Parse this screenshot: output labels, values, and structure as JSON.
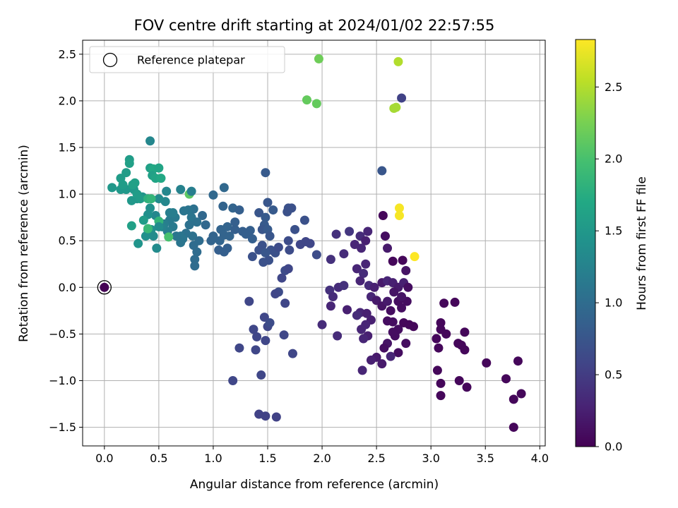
{
  "chart_data": {
    "type": "scatter",
    "title": "FOV centre drift starting at 2024/01/02 22:57:55",
    "xlabel": "Angular distance from reference (arcmin)",
    "ylabel": "Rotation from reference (arcmin)",
    "xlim": [
      -0.2,
      4.05
    ],
    "ylim": [
      -1.7,
      2.65
    ],
    "xticks": [
      0.0,
      0.5,
      1.0,
      1.5,
      2.0,
      2.5,
      3.0,
      3.5,
      4.0
    ],
    "xtick_labels": [
      "0.0",
      "0.5",
      "1.0",
      "1.5",
      "2.0",
      "2.5",
      "3.0",
      "3.5",
      "4.0"
    ],
    "yticks": [
      -1.5,
      -1.0,
      -0.5,
      0.0,
      0.5,
      1.0,
      1.5,
      2.0,
      2.5
    ],
    "ytick_labels": [
      "−1.5",
      "−1.0",
      "−0.5",
      "0.0",
      "0.5",
      "1.0",
      "1.5",
      "2.0",
      "2.5"
    ],
    "grid": true,
    "legend": {
      "placement": "top-left",
      "entries": [
        "Reference platepar"
      ]
    },
    "reference_point": {
      "x": 0.0,
      "y": 0.0,
      "label": "Reference platepar"
    },
    "colorbar": {
      "label": "Hours from first FF file",
      "colormap": "viridis",
      "min": 0.0,
      "max": 2.83,
      "ticks": [
        0.0,
        0.5,
        1.0,
        1.5,
        2.0,
        2.5
      ],
      "tick_labels": [
        "0.0",
        "0.5",
        "1.0",
        "1.5",
        "2.0",
        "2.5"
      ]
    },
    "points": [
      {
        "x": 0.0,
        "y": 0.0,
        "c": 0.0
      },
      {
        "x": 1.97,
        "y": 2.45,
        "c": 2.2
      },
      {
        "x": 2.7,
        "y": 2.42,
        "c": 2.5
      },
      {
        "x": 1.86,
        "y": 2.01,
        "c": 2.15
      },
      {
        "x": 1.95,
        "y": 1.97,
        "c": 2.15
      },
      {
        "x": 2.73,
        "y": 2.03,
        "c": 0.55
      },
      {
        "x": 2.66,
        "y": 1.92,
        "c": 2.45
      },
      {
        "x": 2.68,
        "y": 1.93,
        "c": 2.45
      },
      {
        "x": 2.71,
        "y": 0.85,
        "c": 2.8
      },
      {
        "x": 2.71,
        "y": 0.77,
        "c": 2.8
      },
      {
        "x": 2.85,
        "y": 0.33,
        "c": 2.83
      },
      {
        "x": 2.55,
        "y": 1.25,
        "c": 0.75
      },
      {
        "x": 2.56,
        "y": 0.77,
        "c": 0.05
      },
      {
        "x": 2.58,
        "y": 0.55,
        "c": 0.1
      },
      {
        "x": 2.6,
        "y": 0.42,
        "c": 0.2
      },
      {
        "x": 2.65,
        "y": 0.28,
        "c": 0.05
      },
      {
        "x": 2.74,
        "y": 0.29,
        "c": 0.05
      },
      {
        "x": 2.42,
        "y": 0.6,
        "c": 0.3
      },
      {
        "x": 2.35,
        "y": 0.55,
        "c": 0.35
      },
      {
        "x": 2.3,
        "y": 0.46,
        "c": 0.3
      },
      {
        "x": 2.25,
        "y": 0.6,
        "c": 0.45
      },
      {
        "x": 2.4,
        "y": 0.5,
        "c": 0.25
      },
      {
        "x": 2.36,
        "y": 0.42,
        "c": 0.3
      },
      {
        "x": 2.2,
        "y": 0.36,
        "c": 0.35
      },
      {
        "x": 2.08,
        "y": 0.3,
        "c": 0.4
      },
      {
        "x": 2.13,
        "y": 0.57,
        "c": 0.4
      },
      {
        "x": 2.32,
        "y": 0.2,
        "c": 0.3
      },
      {
        "x": 2.4,
        "y": 0.25,
        "c": 0.3
      },
      {
        "x": 2.38,
        "y": 0.15,
        "c": 0.35
      },
      {
        "x": 2.35,
        "y": 0.07,
        "c": 0.3
      },
      {
        "x": 2.43,
        "y": 0.02,
        "c": 0.35
      },
      {
        "x": 2.48,
        "y": 0.0,
        "c": 0.25
      },
      {
        "x": 2.55,
        "y": 0.05,
        "c": 0.2
      },
      {
        "x": 2.6,
        "y": 0.07,
        "c": 0.3
      },
      {
        "x": 2.65,
        "y": 0.05,
        "c": 0.25
      },
      {
        "x": 2.7,
        "y": 0.0,
        "c": 0.2
      },
      {
        "x": 2.75,
        "y": 0.05,
        "c": 0.25
      },
      {
        "x": 2.77,
        "y": 0.18,
        "c": 0.15
      },
      {
        "x": 2.79,
        "y": 0.0,
        "c": 0.1
      },
      {
        "x": 2.15,
        "y": 0.0,
        "c": 0.35
      },
      {
        "x": 2.2,
        "y": 0.02,
        "c": 0.4
      },
      {
        "x": 2.07,
        "y": -0.03,
        "c": 0.4
      },
      {
        "x": 2.1,
        "y": -0.1,
        "c": 0.35
      },
      {
        "x": 2.08,
        "y": -0.2,
        "c": 0.3
      },
      {
        "x": 2.23,
        "y": -0.24,
        "c": 0.25
      },
      {
        "x": 2.35,
        "y": -0.27,
        "c": 0.3
      },
      {
        "x": 2.41,
        "y": -0.28,
        "c": 0.25
      },
      {
        "x": 2.45,
        "y": -0.1,
        "c": 0.3
      },
      {
        "x": 2.5,
        "y": -0.14,
        "c": 0.2
      },
      {
        "x": 2.55,
        "y": -0.2,
        "c": 0.15
      },
      {
        "x": 2.6,
        "y": -0.15,
        "c": 0.2
      },
      {
        "x": 2.63,
        "y": -0.25,
        "c": 0.1
      },
      {
        "x": 2.66,
        "y": -0.05,
        "c": 0.15
      },
      {
        "x": 2.7,
        "y": -0.15,
        "c": 0.1
      },
      {
        "x": 2.73,
        "y": -0.22,
        "c": 0.1
      },
      {
        "x": 2.78,
        "y": -0.15,
        "c": 0.1
      },
      {
        "x": 2.73,
        "y": -0.1,
        "c": 0.15
      },
      {
        "x": 2.6,
        "y": -0.36,
        "c": 0.1
      },
      {
        "x": 2.65,
        "y": -0.37,
        "c": 0.1
      },
      {
        "x": 2.7,
        "y": -0.45,
        "c": 0.1
      },
      {
        "x": 2.75,
        "y": -0.38,
        "c": 0.05
      },
      {
        "x": 2.8,
        "y": -0.4,
        "c": 0.05
      },
      {
        "x": 2.84,
        "y": -0.42,
        "c": 0.05
      },
      {
        "x": 2.45,
        "y": -0.35,
        "c": 0.25
      },
      {
        "x": 2.4,
        "y": -0.4,
        "c": 0.3
      },
      {
        "x": 2.36,
        "y": -0.45,
        "c": 0.3
      },
      {
        "x": 2.42,
        "y": -0.52,
        "c": 0.25
      },
      {
        "x": 2.38,
        "y": -0.55,
        "c": 0.3
      },
      {
        "x": 2.32,
        "y": -0.3,
        "c": 0.35
      },
      {
        "x": 2.0,
        "y": -0.4,
        "c": 0.35
      },
      {
        "x": 2.14,
        "y": -0.52,
        "c": 0.35
      },
      {
        "x": 2.67,
        "y": -0.52,
        "c": 0.1
      },
      {
        "x": 2.7,
        "y": -0.7,
        "c": 0.1
      },
      {
        "x": 2.6,
        "y": -0.6,
        "c": 0.15
      },
      {
        "x": 2.57,
        "y": -0.65,
        "c": 0.1
      },
      {
        "x": 2.77,
        "y": -0.6,
        "c": 0.1
      },
      {
        "x": 2.65,
        "y": -0.48,
        "c": 0.1
      },
      {
        "x": 2.5,
        "y": -0.75,
        "c": 0.2
      },
      {
        "x": 2.55,
        "y": -0.82,
        "c": 0.2
      },
      {
        "x": 2.45,
        "y": -0.78,
        "c": 0.25
      },
      {
        "x": 2.37,
        "y": -0.89,
        "c": 0.3
      },
      {
        "x": 2.63,
        "y": -0.74,
        "c": 0.3
      },
      {
        "x": 3.09,
        "y": -0.38,
        "c": 0.05
      },
      {
        "x": 3.09,
        "y": -0.45,
        "c": 0.05
      },
      {
        "x": 3.12,
        "y": -0.17,
        "c": 0.05
      },
      {
        "x": 3.22,
        "y": -0.16,
        "c": 0.05
      },
      {
        "x": 3.14,
        "y": -0.5,
        "c": 0.05
      },
      {
        "x": 3.05,
        "y": -0.55,
        "c": 0.05
      },
      {
        "x": 3.07,
        "y": -0.65,
        "c": 0.05
      },
      {
        "x": 3.25,
        "y": -0.6,
        "c": 0.05
      },
      {
        "x": 3.28,
        "y": -0.62,
        "c": 0.05
      },
      {
        "x": 3.31,
        "y": -0.48,
        "c": 0.05
      },
      {
        "x": 3.31,
        "y": -0.67,
        "c": 0.05
      },
      {
        "x": 3.06,
        "y": -0.89,
        "c": 0.05
      },
      {
        "x": 3.09,
        "y": -1.03,
        "c": 0.05
      },
      {
        "x": 3.09,
        "y": -1.16,
        "c": 0.05
      },
      {
        "x": 3.26,
        "y": -1.0,
        "c": 0.05
      },
      {
        "x": 3.33,
        "y": -1.07,
        "c": 0.05
      },
      {
        "x": 3.51,
        "y": -0.81,
        "c": 0.05
      },
      {
        "x": 3.8,
        "y": -0.79,
        "c": 0.05
      },
      {
        "x": 3.69,
        "y": -0.98,
        "c": 0.05
      },
      {
        "x": 3.76,
        "y": -1.2,
        "c": 0.05
      },
      {
        "x": 3.83,
        "y": -1.14,
        "c": 0.05
      },
      {
        "x": 3.76,
        "y": -1.5,
        "c": 0.05
      },
      {
        "x": 1.48,
        "y": 1.23,
        "c": 0.8
      },
      {
        "x": 1.5,
        "y": 0.91,
        "c": 0.75
      },
      {
        "x": 1.47,
        "y": 0.67,
        "c": 0.8
      },
      {
        "x": 1.55,
        "y": 0.83,
        "c": 0.8
      },
      {
        "x": 1.42,
        "y": 0.8,
        "c": 0.75
      },
      {
        "x": 1.48,
        "y": 0.75,
        "c": 0.8
      },
      {
        "x": 1.45,
        "y": 0.62,
        "c": 0.75
      },
      {
        "x": 1.5,
        "y": 0.62,
        "c": 0.8
      },
      {
        "x": 1.52,
        "y": 0.55,
        "c": 0.75
      },
      {
        "x": 1.45,
        "y": 0.45,
        "c": 0.7
      },
      {
        "x": 1.42,
        "y": 0.4,
        "c": 0.7
      },
      {
        "x": 1.53,
        "y": 0.4,
        "c": 0.7
      },
      {
        "x": 1.57,
        "y": 0.37,
        "c": 0.7
      },
      {
        "x": 1.6,
        "y": 0.43,
        "c": 0.65
      },
      {
        "x": 1.48,
        "y": 0.37,
        "c": 0.75
      },
      {
        "x": 1.51,
        "y": 0.29,
        "c": 0.7
      },
      {
        "x": 1.46,
        "y": 0.27,
        "c": 0.7
      },
      {
        "x": 1.68,
        "y": 0.81,
        "c": 0.7
      },
      {
        "x": 1.69,
        "y": 0.85,
        "c": 0.7
      },
      {
        "x": 1.72,
        "y": 0.85,
        "c": 0.7
      },
      {
        "x": 1.69,
        "y": 0.5,
        "c": 0.65
      },
      {
        "x": 1.7,
        "y": 0.4,
        "c": 0.65
      },
      {
        "x": 1.75,
        "y": 0.62,
        "c": 0.7
      },
      {
        "x": 1.8,
        "y": 0.46,
        "c": 0.6
      },
      {
        "x": 1.84,
        "y": 0.72,
        "c": 0.7
      },
      {
        "x": 1.85,
        "y": 0.49,
        "c": 0.6
      },
      {
        "x": 1.89,
        "y": 0.47,
        "c": 0.6
      },
      {
        "x": 1.95,
        "y": 0.35,
        "c": 0.65
      },
      {
        "x": 1.66,
        "y": 0.18,
        "c": 0.65
      },
      {
        "x": 1.69,
        "y": 0.2,
        "c": 0.6
      },
      {
        "x": 1.63,
        "y": 0.1,
        "c": 0.6
      },
      {
        "x": 1.6,
        "y": -0.05,
        "c": 0.65
      },
      {
        "x": 1.57,
        "y": -0.07,
        "c": 0.6
      },
      {
        "x": 1.66,
        "y": -0.17,
        "c": 0.6
      },
      {
        "x": 1.36,
        "y": 0.33,
        "c": 0.7
      },
      {
        "x": 1.33,
        "y": -0.15,
        "c": 0.6
      },
      {
        "x": 1.47,
        "y": -0.32,
        "c": 0.6
      },
      {
        "x": 1.5,
        "y": -0.42,
        "c": 0.6
      },
      {
        "x": 1.52,
        "y": -0.38,
        "c": 0.65
      },
      {
        "x": 1.37,
        "y": -0.45,
        "c": 0.6
      },
      {
        "x": 1.4,
        "y": -0.53,
        "c": 0.6
      },
      {
        "x": 1.48,
        "y": -0.57,
        "c": 0.6
      },
      {
        "x": 1.65,
        "y": -0.51,
        "c": 0.6
      },
      {
        "x": 1.73,
        "y": -0.71,
        "c": 0.6
      },
      {
        "x": 1.24,
        "y": -0.65,
        "c": 0.6
      },
      {
        "x": 1.39,
        "y": -0.67,
        "c": 0.6
      },
      {
        "x": 1.44,
        "y": -0.94,
        "c": 0.6
      },
      {
        "x": 1.18,
        "y": -1.0,
        "c": 0.6
      },
      {
        "x": 1.42,
        "y": -1.36,
        "c": 0.55
      },
      {
        "x": 1.48,
        "y": -1.38,
        "c": 0.55
      },
      {
        "x": 1.58,
        "y": -1.39,
        "c": 0.55
      },
      {
        "x": 1.1,
        "y": 1.07,
        "c": 0.95
      },
      {
        "x": 1.0,
        "y": 0.99,
        "c": 0.95
      },
      {
        "x": 1.09,
        "y": 0.87,
        "c": 0.9
      },
      {
        "x": 1.18,
        "y": 0.85,
        "c": 0.9
      },
      {
        "x": 1.24,
        "y": 0.83,
        "c": 0.85
      },
      {
        "x": 1.13,
        "y": 0.65,
        "c": 0.9
      },
      {
        "x": 1.07,
        "y": 0.62,
        "c": 0.9
      },
      {
        "x": 1.1,
        "y": 0.56,
        "c": 0.9
      },
      {
        "x": 1.15,
        "y": 0.55,
        "c": 0.9
      },
      {
        "x": 1.2,
        "y": 0.62,
        "c": 0.85
      },
      {
        "x": 1.27,
        "y": 0.6,
        "c": 0.85
      },
      {
        "x": 1.34,
        "y": 0.61,
        "c": 0.85
      },
      {
        "x": 1.3,
        "y": 0.57,
        "c": 0.85
      },
      {
        "x": 1.36,
        "y": 0.52,
        "c": 0.85
      },
      {
        "x": 1.06,
        "y": 0.5,
        "c": 0.9
      },
      {
        "x": 1.0,
        "y": 0.55,
        "c": 0.9
      },
      {
        "x": 0.98,
        "y": 0.5,
        "c": 0.9
      },
      {
        "x": 1.05,
        "y": 0.4,
        "c": 0.85
      },
      {
        "x": 1.13,
        "y": 0.42,
        "c": 0.85
      },
      {
        "x": 1.1,
        "y": 0.38,
        "c": 0.85
      },
      {
        "x": 1.2,
        "y": 0.7,
        "c": 0.85
      },
      {
        "x": 0.93,
        "y": 0.67,
        "c": 0.95
      },
      {
        "x": 0.9,
        "y": 0.77,
        "c": 0.95
      },
      {
        "x": 0.82,
        "y": 0.84,
        "c": 1.05
      },
      {
        "x": 0.77,
        "y": 0.83,
        "c": 1.1
      },
      {
        "x": 0.73,
        "y": 0.82,
        "c": 1.1
      },
      {
        "x": 0.8,
        "y": 0.75,
        "c": 1.1
      },
      {
        "x": 0.85,
        "y": 0.7,
        "c": 1.05
      },
      {
        "x": 0.78,
        "y": 0.67,
        "c": 1.05
      },
      {
        "x": 0.75,
        "y": 0.58,
        "c": 1.05
      },
      {
        "x": 0.7,
        "y": 0.55,
        "c": 1.1
      },
      {
        "x": 0.72,
        "y": 0.52,
        "c": 1.1
      },
      {
        "x": 0.81,
        "y": 0.55,
        "c": 1.05
      },
      {
        "x": 0.87,
        "y": 0.5,
        "c": 1.0
      },
      {
        "x": 0.82,
        "y": 0.45,
        "c": 1.0
      },
      {
        "x": 0.85,
        "y": 0.38,
        "c": 1.0
      },
      {
        "x": 0.83,
        "y": 0.3,
        "c": 1.0
      },
      {
        "x": 0.83,
        "y": 0.23,
        "c": 1.0
      },
      {
        "x": 0.7,
        "y": 0.48,
        "c": 1.1
      },
      {
        "x": 0.66,
        "y": 0.55,
        "c": 1.1
      },
      {
        "x": 0.63,
        "y": 0.65,
        "c": 1.15
      },
      {
        "x": 0.6,
        "y": 0.72,
        "c": 1.15
      },
      {
        "x": 0.65,
        "y": 0.75,
        "c": 1.15
      },
      {
        "x": 0.63,
        "y": 0.8,
        "c": 1.2
      },
      {
        "x": 0.7,
        "y": 1.05,
        "c": 1.25
      },
      {
        "x": 0.55,
        "y": 0.68,
        "c": 1.2
      },
      {
        "x": 0.58,
        "y": 0.6,
        "c": 1.2
      },
      {
        "x": 0.53,
        "y": 0.65,
        "c": 1.25
      },
      {
        "x": 0.56,
        "y": 0.92,
        "c": 1.3
      },
      {
        "x": 0.57,
        "y": 1.03,
        "c": 1.3
      },
      {
        "x": 0.5,
        "y": 0.95,
        "c": 1.35
      },
      {
        "x": 0.47,
        "y": 0.77,
        "c": 1.3
      },
      {
        "x": 0.43,
        "y": 0.62,
        "c": 1.4
      },
      {
        "x": 0.45,
        "y": 0.55,
        "c": 1.35
      },
      {
        "x": 0.48,
        "y": 0.42,
        "c": 1.35
      },
      {
        "x": 0.38,
        "y": 0.55,
        "c": 1.4
      },
      {
        "x": 0.4,
        "y": 0.62,
        "c": 1.45
      },
      {
        "x": 0.4,
        "y": 0.78,
        "c": 1.4
      },
      {
        "x": 0.42,
        "y": 0.85,
        "c": 1.4
      },
      {
        "x": 0.35,
        "y": 0.97,
        "c": 1.45
      },
      {
        "x": 0.3,
        "y": 0.95,
        "c": 1.45
      },
      {
        "x": 0.25,
        "y": 0.93,
        "c": 1.5
      },
      {
        "x": 0.27,
        "y": 1.05,
        "c": 1.5
      },
      {
        "x": 0.2,
        "y": 1.05,
        "c": 1.5
      },
      {
        "x": 0.15,
        "y": 1.05,
        "c": 1.5
      },
      {
        "x": 0.17,
        "y": 1.1,
        "c": 1.55
      },
      {
        "x": 0.15,
        "y": 1.17,
        "c": 1.55
      },
      {
        "x": 0.07,
        "y": 1.07,
        "c": 1.5
      },
      {
        "x": 0.2,
        "y": 1.23,
        "c": 1.55
      },
      {
        "x": 0.23,
        "y": 1.37,
        "c": 1.55
      },
      {
        "x": 0.23,
        "y": 1.33,
        "c": 1.6
      },
      {
        "x": 0.26,
        "y": 1.1,
        "c": 1.6
      },
      {
        "x": 0.28,
        "y": 1.12,
        "c": 1.6
      },
      {
        "x": 0.3,
        "y": 1.0,
        "c": 1.55
      },
      {
        "x": 0.33,
        "y": 0.95,
        "c": 1.55
      },
      {
        "x": 0.42,
        "y": 1.28,
        "c": 1.6
      },
      {
        "x": 0.45,
        "y": 1.27,
        "c": 1.7
      },
      {
        "x": 0.5,
        "y": 1.28,
        "c": 1.65
      },
      {
        "x": 0.44,
        "y": 1.2,
        "c": 1.6
      },
      {
        "x": 0.47,
        "y": 1.17,
        "c": 1.65
      },
      {
        "x": 0.52,
        "y": 1.17,
        "c": 1.7
      },
      {
        "x": 0.42,
        "y": 1.57,
        "c": 1.3
      },
      {
        "x": 0.31,
        "y": 0.47,
        "c": 1.45
      },
      {
        "x": 0.25,
        "y": 0.66,
        "c": 1.6
      },
      {
        "x": 0.36,
        "y": 0.72,
        "c": 1.55
      },
      {
        "x": 0.4,
        "y": 0.95,
        "c": 1.8
      },
      {
        "x": 0.43,
        "y": 0.95,
        "c": 1.85
      },
      {
        "x": 0.5,
        "y": 0.71,
        "c": 1.85
      },
      {
        "x": 0.4,
        "y": 0.63,
        "c": 1.9
      },
      {
        "x": 0.59,
        "y": 0.54,
        "c": 2.0
      },
      {
        "x": 0.78,
        "y": 1.0,
        "c": 2.1
      },
      {
        "x": 0.8,
        "y": 1.03,
        "c": 1.2
      },
      {
        "x": 0.5,
        "y": 0.65,
        "c": 1.35
      },
      {
        "x": 0.6,
        "y": 0.8,
        "c": 1.2
      }
    ]
  }
}
